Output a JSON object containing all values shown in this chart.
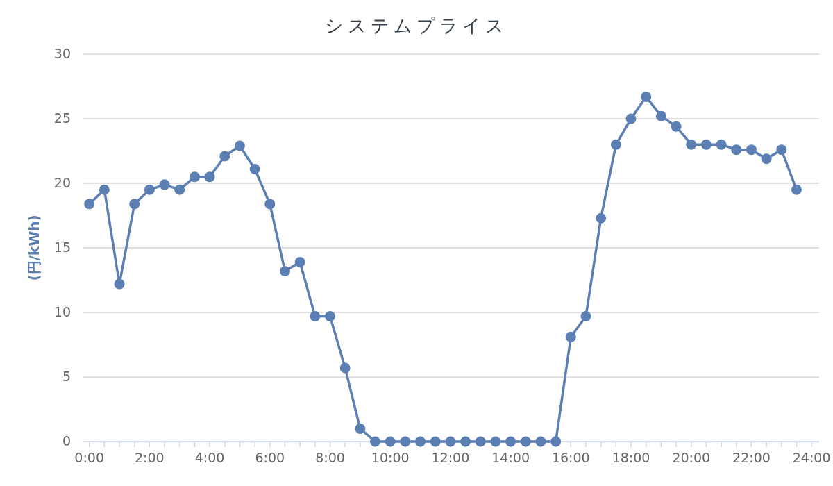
{
  "chart_data": {
    "type": "line",
    "title": "システムプライス",
    "ylabel": "(円/kWh)",
    "x": [
      0,
      0.5,
      1,
      1.5,
      2,
      2.5,
      3,
      3.5,
      4,
      4.5,
      5,
      5.5,
      6,
      6.5,
      7,
      7.5,
      8,
      8.5,
      9,
      9.5,
      10,
      10.5,
      11,
      11.5,
      12,
      12.5,
      13,
      13.5,
      14,
      14.5,
      15,
      15.5,
      16,
      16.5,
      17,
      17.5,
      18,
      18.5,
      19,
      19.5,
      20,
      20.5,
      21,
      21.5,
      22,
      22.5,
      23,
      23.5
    ],
    "series": [
      {
        "color": "#5b7fb3",
        "values": [
          18.4,
          19.5,
          12.2,
          18.4,
          19.5,
          19.9,
          19.5,
          20.5,
          20.5,
          22.1,
          22.9,
          21.1,
          18.4,
          13.2,
          13.9,
          9.7,
          9.7,
          5.7,
          1.0,
          0,
          0,
          0,
          0,
          0,
          0,
          0,
          0,
          0,
          0,
          0,
          0,
          0,
          8.1,
          9.7,
          17.3,
          23.0,
          25.0,
          26.7,
          25.2,
          24.4,
          23.0,
          23.0,
          23.0,
          22.6,
          22.6,
          21.9,
          22.6,
          19.5
        ]
      }
    ],
    "xlim": [
      -0.2,
      24.25
    ],
    "ylim": [
      0,
      30
    ],
    "yticks": [
      0,
      5,
      10,
      15,
      20,
      25,
      30
    ],
    "xticks": [
      {
        "value": 0,
        "label": "0:00"
      },
      {
        "value": 0.5,
        "label": null
      },
      {
        "value": 1,
        "label": null
      },
      {
        "value": 1.5,
        "label": null
      },
      {
        "value": 2,
        "label": "2:00"
      },
      {
        "value": 2.5,
        "label": null
      },
      {
        "value": 3,
        "label": null
      },
      {
        "value": 3.5,
        "label": null
      },
      {
        "value": 4,
        "label": "4:00"
      },
      {
        "value": 4.5,
        "label": null
      },
      {
        "value": 5,
        "label": null
      },
      {
        "value": 5.5,
        "label": null
      },
      {
        "value": 6,
        "label": "6:00"
      },
      {
        "value": 6.5,
        "label": null
      },
      {
        "value": 7,
        "label": null
      },
      {
        "value": 7.5,
        "label": null
      },
      {
        "value": 8,
        "label": "8:00"
      },
      {
        "value": 8.5,
        "label": null
      },
      {
        "value": 9,
        "label": null
      },
      {
        "value": 9.5,
        "label": null
      },
      {
        "value": 10,
        "label": "10:00"
      },
      {
        "value": 10.5,
        "label": null
      },
      {
        "value": 11,
        "label": null
      },
      {
        "value": 11.5,
        "label": null
      },
      {
        "value": 12,
        "label": "12:00"
      },
      {
        "value": 12.5,
        "label": null
      },
      {
        "value": 13,
        "label": null
      },
      {
        "value": 13.5,
        "label": null
      },
      {
        "value": 14,
        "label": "14:00"
      },
      {
        "value": 14.5,
        "label": null
      },
      {
        "value": 15,
        "label": null
      },
      {
        "value": 15.5,
        "label": null
      },
      {
        "value": 16,
        "label": "16:00"
      },
      {
        "value": 16.5,
        "label": null
      },
      {
        "value": 17,
        "label": null
      },
      {
        "value": 17.5,
        "label": null
      },
      {
        "value": 18,
        "label": "18:00"
      },
      {
        "value": 18.5,
        "label": null
      },
      {
        "value": 19,
        "label": null
      },
      {
        "value": 19.5,
        "label": null
      },
      {
        "value": 20,
        "label": "20:00"
      },
      {
        "value": 20.5,
        "label": null
      },
      {
        "value": 21,
        "label": null
      },
      {
        "value": 21.5,
        "label": null
      },
      {
        "value": 22,
        "label": "22:00"
      },
      {
        "value": 22.5,
        "label": null
      },
      {
        "value": 23,
        "label": null
      },
      {
        "value": 23.5,
        "label": null
      },
      {
        "value": 24,
        "label": "24:00"
      }
    ],
    "grid": "y",
    "marker": "circle",
    "line_style": "solid"
  }
}
